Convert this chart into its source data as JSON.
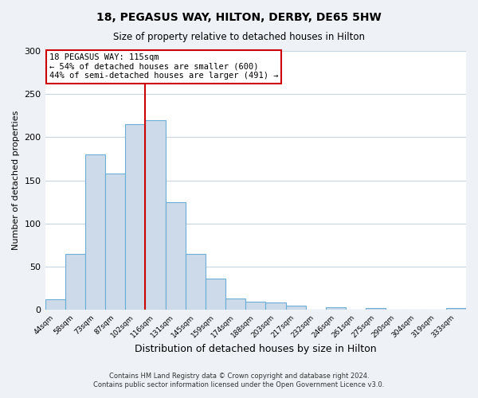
{
  "title": "18, PEGASUS WAY, HILTON, DERBY, DE65 5HW",
  "subtitle": "Size of property relative to detached houses in Hilton",
  "xlabel": "Distribution of detached houses by size in Hilton",
  "ylabel": "Number of detached properties",
  "bar_labels": [
    "44sqm",
    "58sqm",
    "73sqm",
    "87sqm",
    "102sqm",
    "116sqm",
    "131sqm",
    "145sqm",
    "159sqm",
    "174sqm",
    "188sqm",
    "203sqm",
    "217sqm",
    "232sqm",
    "246sqm",
    "261sqm",
    "275sqm",
    "290sqm",
    "304sqm",
    "319sqm",
    "333sqm"
  ],
  "bar_heights": [
    12,
    65,
    180,
    158,
    215,
    220,
    125,
    65,
    36,
    13,
    10,
    9,
    5,
    0,
    3,
    0,
    2,
    0,
    0,
    0,
    2
  ],
  "bar_color": "#ccdaea",
  "bar_edge_color": "#6aadd5",
  "vline_x_index": 5,
  "vline_color": "#cc0000",
  "annotation_line1": "18 PEGASUS WAY: 115sqm",
  "annotation_line2": "← 54% of detached houses are smaller (600)",
  "annotation_line3": "44% of semi-detached houses are larger (491) →",
  "annotation_box_edge_color": "#cc0000",
  "ylim": [
    0,
    300
  ],
  "yticks": [
    0,
    50,
    100,
    150,
    200,
    250,
    300
  ],
  "footnote1": "Contains HM Land Registry data © Crown copyright and database right 2024.",
  "footnote2": "Contains public sector information licensed under the Open Government Licence v3.0.",
  "bg_color": "#eef2f7",
  "plot_bg_color": "#ffffff",
  "grid_color": "#c8d4e0"
}
